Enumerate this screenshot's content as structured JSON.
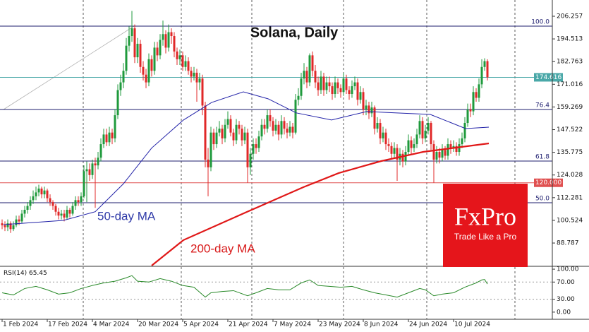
{
  "chart_data": {
    "type": "candlestick",
    "title": "Solana, Daily",
    "up_color": "#1f9a3c",
    "down_color": "#e02828",
    "first_open": 99,
    "close": [
      98,
      97,
      99,
      96,
      98,
      101,
      100,
      104,
      106,
      108,
      111,
      113,
      115,
      117,
      114,
      116,
      112,
      110,
      108,
      105,
      103,
      104,
      102,
      106,
      104,
      108,
      111,
      110,
      113,
      126,
      127,
      124,
      130,
      129,
      133,
      140,
      145,
      141,
      146,
      143,
      155,
      168,
      172,
      178,
      191,
      196,
      200,
      185,
      192,
      180,
      176,
      172,
      184,
      178,
      190,
      186,
      194,
      197,
      190,
      198,
      196,
      188,
      184,
      186,
      180,
      183,
      178,
      175,
      177,
      172,
      174,
      160,
      132,
      128,
      146,
      140,
      146,
      148,
      143,
      150,
      153,
      146,
      142,
      150,
      148,
      142,
      146,
      128,
      135,
      140,
      138,
      144,
      150,
      148,
      155,
      152,
      147,
      150,
      145,
      152,
      148,
      146,
      149,
      146,
      163,
      165,
      174,
      178,
      172,
      186,
      178,
      172,
      168,
      175,
      168,
      172,
      170,
      166,
      172,
      169,
      167,
      174,
      168,
      166,
      170,
      172,
      163,
      167,
      158,
      160,
      156,
      159,
      148,
      151,
      143,
      146,
      140,
      139,
      135,
      138,
      132,
      135,
      131,
      136,
      142,
      138,
      140,
      145,
      152,
      143,
      147,
      151,
      140,
      132,
      136,
      133,
      137,
      134,
      140,
      138,
      139,
      136,
      140,
      143,
      151,
      158,
      157,
      167,
      164,
      171,
      180,
      183,
      174.616
    ],
    "high": [
      101,
      100,
      101,
      100,
      100,
      103,
      103,
      106,
      108,
      110,
      113,
      116,
      118,
      119,
      118,
      118,
      117,
      114,
      111,
      109,
      107,
      106,
      106,
      108,
      107,
      110,
      113,
      113,
      115,
      129,
      131,
      130,
      132,
      133,
      136,
      143,
      148,
      148,
      149,
      148,
      158,
      171,
      176,
      182,
      195,
      201,
      209,
      202,
      195,
      194,
      183,
      179,
      187,
      186,
      193,
      193,
      197,
      204,
      199,
      202,
      200,
      198,
      190,
      189,
      188,
      186,
      185,
      180,
      180,
      179,
      177,
      176,
      162,
      138,
      149,
      148,
      149,
      152,
      150,
      153,
      157,
      155,
      148,
      153,
      152,
      150,
      149,
      148,
      138,
      143,
      143,
      147,
      153,
      153,
      158,
      158,
      154,
      153,
      152,
      155,
      154,
      151,
      152,
      151,
      166,
      169,
      177,
      182,
      180,
      187,
      188,
      181,
      175,
      178,
      177,
      175,
      175,
      172,
      175,
      174,
      171,
      177,
      176,
      170,
      173,
      175,
      174,
      170,
      169,
      163,
      162,
      162,
      160,
      154,
      153,
      149,
      148,
      143,
      141,
      141,
      140,
      138,
      137,
      139,
      145,
      144,
      143,
      148,
      155,
      154,
      150,
      154,
      152,
      142,
      139,
      138,
      140,
      139,
      143,
      142,
      142,
      141,
      143,
      146,
      154,
      161,
      161,
      170,
      169,
      174,
      184,
      184.5,
      184
    ],
    "low": [
      96,
      95,
      95,
      94,
      95,
      97,
      98,
      99,
      102,
      104,
      106,
      109,
      111,
      113,
      112,
      112,
      110,
      108,
      106,
      103,
      101,
      101,
      100,
      101,
      102,
      103,
      106,
      108,
      108,
      112,
      110,
      121,
      122,
      107,
      127,
      131,
      138,
      139,
      139,
      140,
      141,
      153,
      165,
      169,
      176,
      188,
      193,
      182,
      182,
      177,
      173,
      169,
      170,
      175,
      176,
      183,
      184,
      191,
      187,
      188,
      192,
      185,
      181,
      181,
      178,
      178,
      176,
      172,
      173,
      162,
      168,
      155,
      128,
      113,
      126,
      137,
      138,
      144,
      140,
      141,
      148,
      144,
      139,
      140,
      145,
      139,
      140,
      120,
      124,
      132,
      135,
      136,
      142,
      145,
      146,
      149,
      144,
      145,
      142,
      143,
      145,
      143,
      144,
      143,
      145,
      160,
      163,
      171,
      169,
      170,
      175,
      169,
      165,
      166,
      165,
      166,
      167,
      163,
      164,
      166,
      164,
      165,
      166,
      163,
      164,
      168,
      160,
      161,
      155,
      155,
      153,
      154,
      145,
      146,
      140,
      141,
      137,
      136,
      132,
      133,
      121,
      129,
      128,
      129,
      134,
      135,
      136,
      138,
      143,
      140,
      141,
      145,
      137,
      120,
      130,
      130,
      131,
      132,
      132,
      135,
      136,
      134,
      134,
      138,
      141,
      149,
      154,
      155,
      162,
      162,
      169,
      178,
      173
    ],
    "xlim": [
      -0.75,
      195
    ],
    "xticks": [
      {
        "value": 0,
        "label": "1 Feb 2024"
      },
      {
        "value": 16,
        "label": "17 Feb 2024"
      },
      {
        "value": 32,
        "label": "4 Mar 2024"
      },
      {
        "value": 48,
        "label": "20 Mar 2024"
      },
      {
        "value": 64,
        "label": "5 Apr 2024"
      },
      {
        "value": 80,
        "label": "21 Apr 2024"
      },
      {
        "value": 96,
        "label": "7 May 2024"
      },
      {
        "value": 112,
        "label": "23 May 2024"
      },
      {
        "value": 128,
        "label": "8 Jun 2024"
      },
      {
        "value": 144,
        "label": "24 Jun 2024"
      },
      {
        "value": 160,
        "label": "10 Jul 2024"
      }
    ],
    "xgrid": [
      28.75,
      63.5,
      88.5,
      121,
      150.5,
      181.75
    ],
    "ylim": [
      76.73,
      214.67
    ],
    "yticks": [
      206.257,
      194.513,
      182.763,
      171.016,
      159.269,
      147.522,
      135.775,
      124.028,
      112.281,
      100.524,
      88.787
    ],
    "levels": [
      {
        "value": 201.13,
        "label": "100.0",
        "color": "#1c1c6e",
        "kind": "fib"
      },
      {
        "value": 174.616,
        "label": "174.616",
        "color": "#4aa8a8",
        "kind": "price"
      },
      {
        "value": 157.96,
        "label": "76.4",
        "color": "#1c1c6e",
        "kind": "fib"
      },
      {
        "value": 131.25,
        "label": "61.8",
        "color": "#1c1c6e",
        "kind": "fib"
      },
      {
        "value": 120,
        "label": "120.000",
        "color": "#e05050",
        "kind": "price"
      },
      {
        "value": 109.66,
        "label": "50.0",
        "color": "#1c1c6e",
        "kind": "fib"
      }
    ],
    "trendline": {
      "x": [
        0.5,
        46.75
      ],
      "values": [
        157.96,
        201.13
      ],
      "color": "#b0b0b0"
    },
    "lines": [
      {
        "name": "50-day MA",
        "color": "#2222a8",
        "x": [
          0.5,
          21.75,
          33,
          43,
          53,
          64.25,
          74.25,
          85.5,
          94.25,
          104.25,
          116.75,
          129.25,
          139.25,
          151.75,
          164.25,
          172.5
        ],
        "values": [
          98.3,
          100.5,
          105,
          119.5,
          138,
          152.5,
          161.6,
          167.1,
          163.5,
          156.2,
          152.5,
          156.9,
          156.2,
          155.4,
          148.1,
          148.8
        ]
      },
      {
        "name": "200-day MA",
        "color": "#e01818",
        "x": [
          53,
          64.25,
          86.75,
          106.75,
          119.25,
          134.25,
          149.25,
          172.5
        ],
        "values": [
          77.1,
          90.3,
          104.9,
          117.7,
          125,
          131.2,
          136,
          140.4
        ]
      }
    ],
    "rsi": {
      "name": "RSI(14)",
      "last_value": 65.45,
      "color": "#2a8a2a",
      "x": [
        0,
        4,
        8,
        12,
        16,
        20,
        24,
        28,
        32,
        36,
        40,
        44,
        46,
        48,
        52,
        56,
        60,
        64,
        68,
        72,
        74,
        78,
        82,
        87,
        90,
        94,
        98,
        102,
        106,
        109,
        112,
        116,
        120,
        124,
        128,
        132,
        136,
        140,
        144,
        148,
        150,
        153,
        156,
        160,
        164,
        168,
        170,
        171,
        172
      ],
      "values": [
        45,
        40,
        55,
        60,
        52,
        42,
        45,
        55,
        62,
        68,
        72,
        80,
        85,
        72,
        70,
        78,
        72,
        62,
        58,
        35,
        45,
        48,
        50,
        38,
        45,
        55,
        52,
        52,
        68,
        75,
        62,
        60,
        58,
        60,
        52,
        45,
        40,
        35,
        45,
        55,
        52,
        38,
        42,
        45,
        58,
        68,
        75,
        76,
        65.45
      ],
      "ylim": [
        -16.67,
        106.67
      ],
      "yticks": [
        {
          "value": 100,
          "label": "100.00"
        },
        {
          "value": 70,
          "label": "70.00"
        },
        {
          "value": 30,
          "label": "30.00"
        },
        {
          "value": 0,
          "label": "0.00"
        }
      ],
      "levels": [
        70,
        30
      ]
    }
  },
  "brand": {
    "logo": "FxPro",
    "tagline": "Trade Like a Pro"
  }
}
